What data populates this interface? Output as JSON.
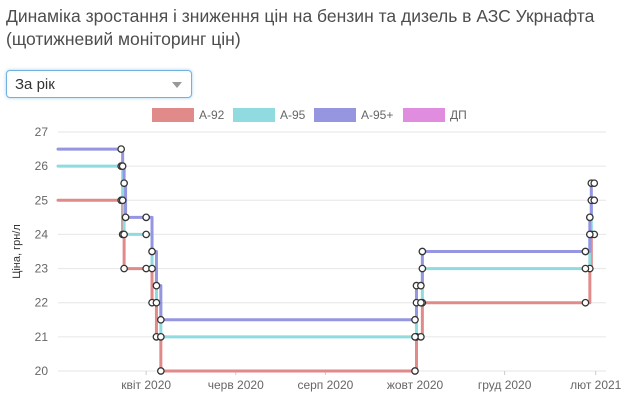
{
  "title": "Динаміка зростання і зниження цін на бензин та дизель в АЗС Укрнафта (щотижневий моніторинг цін)",
  "period_select": {
    "value": "За рік"
  },
  "chart_data": {
    "type": "line",
    "step": true,
    "ylabel": "Ціна, грн/л",
    "ylim": [
      20,
      27
    ],
    "yticks": [
      20,
      21,
      22,
      23,
      24,
      25,
      26,
      27
    ],
    "xlim": [
      "2020-02-01",
      "2021-02-08"
    ],
    "xticks": [
      {
        "date": "2020-04-01",
        "label": "квіт 2020"
      },
      {
        "date": "2020-06-01",
        "label": "черв 2020"
      },
      {
        "date": "2020-08-01",
        "label": "серп 2020"
      },
      {
        "date": "2020-10-01",
        "label": "жовт 2020"
      },
      {
        "date": "2020-12-01",
        "label": "груд 2020"
      },
      {
        "date": "2021-02-01",
        "label": "лют 2021"
      }
    ],
    "grid": true,
    "legend": "top",
    "series": [
      {
        "name": "А-92",
        "color": "#e08a8a",
        "points": [
          {
            "date": "2020-03-15",
            "value": 25
          },
          {
            "date": "2020-03-16",
            "value": 24
          },
          {
            "date": "2020-03-17",
            "value": 23
          },
          {
            "date": "2020-04-01",
            "value": 23
          },
          {
            "date": "2020-04-05",
            "value": 22
          },
          {
            "date": "2020-04-08",
            "value": 21
          },
          {
            "date": "2020-04-11",
            "value": 20
          },
          {
            "date": "2020-10-01",
            "value": 20
          },
          {
            "date": "2020-10-02",
            "value": 21
          },
          {
            "date": "2020-10-05",
            "value": 21
          },
          {
            "date": "2020-10-06",
            "value": 22
          },
          {
            "date": "2021-01-25",
            "value": 22
          },
          {
            "date": "2021-01-28",
            "value": 23
          },
          {
            "date": "2021-01-29",
            "value": 24
          },
          {
            "date": "2021-01-31",
            "value": 24
          }
        ]
      },
      {
        "name": "А-95",
        "color": "#8fdbe0",
        "points": [
          {
            "date": "2020-03-15",
            "value": 26
          },
          {
            "date": "2020-03-16",
            "value": 25
          },
          {
            "date": "2020-03-17",
            "value": 24
          },
          {
            "date": "2020-04-01",
            "value": 24
          },
          {
            "date": "2020-04-05",
            "value": 23
          },
          {
            "date": "2020-04-08",
            "value": 22
          },
          {
            "date": "2020-04-11",
            "value": 21
          },
          {
            "date": "2020-10-01",
            "value": 21
          },
          {
            "date": "2020-10-02",
            "value": 22
          },
          {
            "date": "2020-10-05",
            "value": 22
          },
          {
            "date": "2020-10-06",
            "value": 23
          },
          {
            "date": "2021-01-25",
            "value": 23
          },
          {
            "date": "2021-01-28",
            "value": 24
          },
          {
            "date": "2021-01-29",
            "value": 25
          },
          {
            "date": "2021-01-31",
            "value": 25
          }
        ]
      },
      {
        "name": "А-95+",
        "color": "#9595e0",
        "points": [
          {
            "date": "2020-03-15",
            "value": 26.5
          },
          {
            "date": "2020-03-16",
            "value": 26
          },
          {
            "date": "2020-03-17",
            "value": 25.5
          },
          {
            "date": "2020-03-18",
            "value": 24.5
          },
          {
            "date": "2020-04-01",
            "value": 24.5
          },
          {
            "date": "2020-04-05",
            "value": 23.5
          },
          {
            "date": "2020-04-08",
            "value": 22.5
          },
          {
            "date": "2020-04-11",
            "value": 21.5
          },
          {
            "date": "2020-10-01",
            "value": 21.5
          },
          {
            "date": "2020-10-02",
            "value": 22.5
          },
          {
            "date": "2020-10-05",
            "value": 22.5
          },
          {
            "date": "2020-10-06",
            "value": 23.5
          },
          {
            "date": "2021-01-25",
            "value": 23.5
          },
          {
            "date": "2021-01-28",
            "value": 24.5
          },
          {
            "date": "2021-01-29",
            "value": 25.5
          },
          {
            "date": "2021-01-31",
            "value": 25.5
          }
        ]
      },
      {
        "name": "ДП",
        "color": "#e08de0",
        "points": []
      }
    ]
  }
}
